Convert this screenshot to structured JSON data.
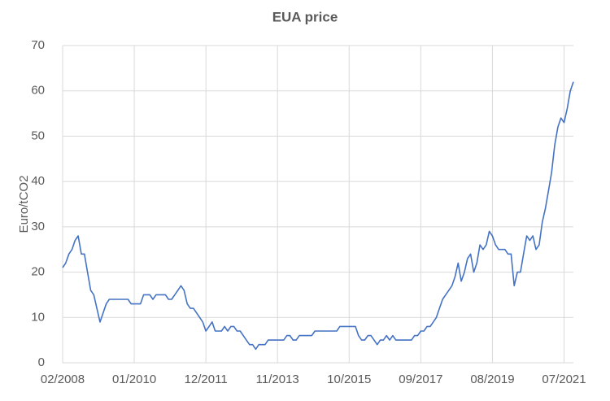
{
  "chart_data": {
    "type": "line",
    "title": "EUA price",
    "y_label": "Euro/tCO2",
    "x": [
      "2008-02",
      "2008-03",
      "2008-04",
      "2008-05",
      "2008-06",
      "2008-07",
      "2008-08",
      "2008-09",
      "2008-10",
      "2008-11",
      "2008-12",
      "2009-01",
      "2009-02",
      "2009-03",
      "2009-04",
      "2009-05",
      "2009-06",
      "2009-07",
      "2009-08",
      "2009-09",
      "2009-10",
      "2009-11",
      "2009-12",
      "2010-01",
      "2010-02",
      "2010-03",
      "2010-04",
      "2010-05",
      "2010-06",
      "2010-07",
      "2010-08",
      "2010-09",
      "2010-10",
      "2010-11",
      "2010-12",
      "2011-01",
      "2011-02",
      "2011-03",
      "2011-04",
      "2011-05",
      "2011-06",
      "2011-07",
      "2011-08",
      "2011-09",
      "2011-10",
      "2011-11",
      "2011-12",
      "2012-01",
      "2012-02",
      "2012-03",
      "2012-04",
      "2012-05",
      "2012-06",
      "2012-07",
      "2012-08",
      "2012-09",
      "2012-10",
      "2012-11",
      "2012-12",
      "2013-01",
      "2013-02",
      "2013-03",
      "2013-04",
      "2013-05",
      "2013-06",
      "2013-07",
      "2013-08",
      "2013-09",
      "2013-10",
      "2013-11",
      "2013-12",
      "2014-01",
      "2014-02",
      "2014-03",
      "2014-04",
      "2014-05",
      "2014-06",
      "2014-07",
      "2014-08",
      "2014-09",
      "2014-10",
      "2014-11",
      "2014-12",
      "2015-01",
      "2015-02",
      "2015-03",
      "2015-04",
      "2015-05",
      "2015-06",
      "2015-07",
      "2015-08",
      "2015-09",
      "2015-10",
      "2015-11",
      "2015-12",
      "2016-01",
      "2016-02",
      "2016-03",
      "2016-04",
      "2016-05",
      "2016-06",
      "2016-07",
      "2016-08",
      "2016-09",
      "2016-10",
      "2016-11",
      "2016-12",
      "2017-01",
      "2017-02",
      "2017-03",
      "2017-04",
      "2017-05",
      "2017-06",
      "2017-07",
      "2017-08",
      "2017-09",
      "2017-10",
      "2017-11",
      "2017-12",
      "2018-01",
      "2018-02",
      "2018-03",
      "2018-04",
      "2018-05",
      "2018-06",
      "2018-07",
      "2018-08",
      "2018-09",
      "2018-10",
      "2018-11",
      "2018-12",
      "2019-01",
      "2019-02",
      "2019-03",
      "2019-04",
      "2019-05",
      "2019-06",
      "2019-07",
      "2019-08",
      "2019-09",
      "2019-10",
      "2019-11",
      "2019-12",
      "2020-01",
      "2020-02",
      "2020-03",
      "2020-04",
      "2020-05",
      "2020-06",
      "2020-07",
      "2020-08",
      "2020-09",
      "2020-10",
      "2020-11",
      "2020-12",
      "2021-01",
      "2021-02",
      "2021-03",
      "2021-04",
      "2021-05",
      "2021-06",
      "2021-07",
      "2021-08",
      "2021-09",
      "2021-10"
    ],
    "series": [
      {
        "name": "EUA price",
        "color": "#4472c4",
        "values": [
          21,
          22,
          24,
          25,
          27,
          28,
          24,
          24,
          20,
          16,
          15,
          12,
          9,
          11,
          13,
          14,
          14,
          14,
          14,
          14,
          14,
          14,
          13,
          13,
          13,
          13,
          15,
          15,
          15,
          14,
          15,
          15,
          15,
          15,
          14,
          14,
          15,
          16,
          17,
          16,
          13,
          12,
          12,
          11,
          10,
          9,
          7,
          8,
          9,
          7,
          7,
          7,
          8,
          7,
          8,
          8,
          7,
          7,
          6,
          5,
          4,
          4,
          3,
          4,
          4,
          4,
          5,
          5,
          5,
          5,
          5,
          5,
          6,
          6,
          5,
          5,
          6,
          6,
          6,
          6,
          6,
          7,
          7,
          7,
          7,
          7,
          7,
          7,
          7,
          8,
          8,
          8,
          8,
          8,
          8,
          6,
          5,
          5,
          6,
          6,
          5,
          4,
          5,
          5,
          6,
          5,
          6,
          5,
          5,
          5,
          5,
          5,
          5,
          6,
          6,
          7,
          7,
          8,
          8,
          9,
          10,
          12,
          14,
          15,
          16,
          17,
          19,
          22,
          18,
          20,
          23,
          24,
          20,
          22,
          26,
          25,
          26,
          29,
          28,
          26,
          25,
          25,
          25,
          24,
          24,
          17,
          20,
          20,
          24,
          28,
          27,
          28,
          25,
          26,
          31,
          34,
          38,
          42,
          48,
          52,
          54,
          53,
          56,
          60,
          62
        ]
      }
    ],
    "xlim": [
      "2008-02",
      "2021-10"
    ],
    "xticks": [
      {
        "value": "2008-02",
        "label": "02/2008"
      },
      {
        "value": "2010-01",
        "label": "01/2010"
      },
      {
        "value": "2011-12",
        "label": "12/2011"
      },
      {
        "value": "2013-11",
        "label": "11/2013"
      },
      {
        "value": "2015-10",
        "label": "10/2015"
      },
      {
        "value": "2017-09",
        "label": "09/2017"
      },
      {
        "value": "2019-08",
        "label": "08/2019"
      },
      {
        "value": "2021-07",
        "label": "07/2021"
      }
    ],
    "ylim": [
      0,
      70
    ],
    "yticks": [
      0,
      10,
      20,
      30,
      40,
      50,
      60,
      70
    ],
    "grid": true
  }
}
